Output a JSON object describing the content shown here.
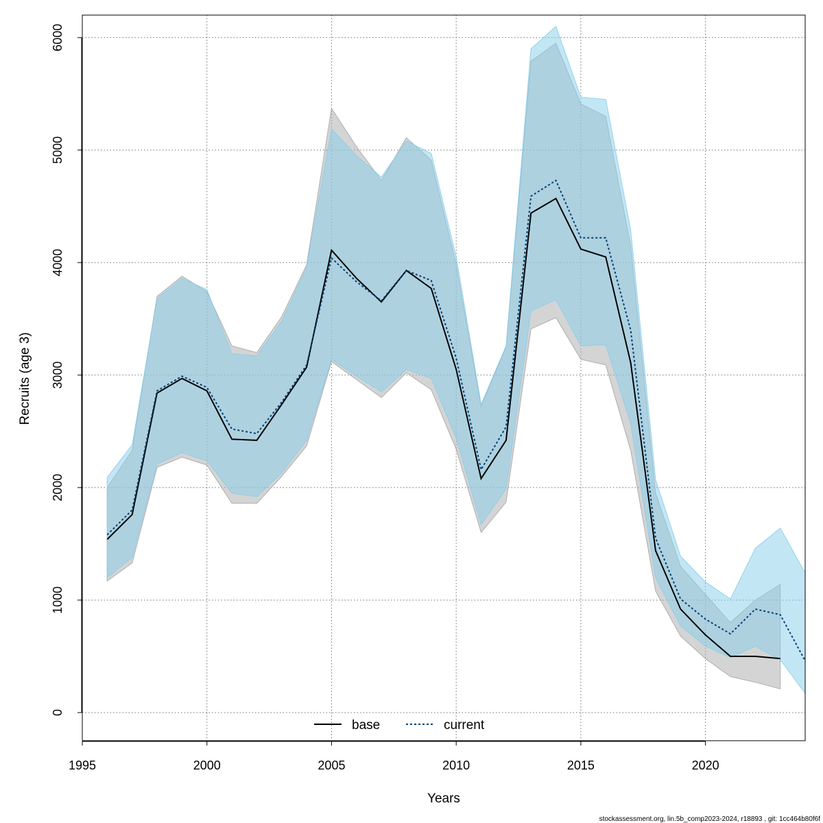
{
  "chart_data": {
    "type": "area",
    "xlabel": "Years",
    "ylabel": "Recruits (age 3)",
    "xlim": [
      1995,
      2024
    ],
    "ylim": [
      -250,
      6200
    ],
    "xticks": [
      1995,
      2000,
      2005,
      2010,
      2015,
      2020
    ],
    "yticks": [
      0,
      1000,
      2000,
      3000,
      4000,
      5000,
      6000
    ],
    "grid": true,
    "legend_position": "bottom-center",
    "series": [
      {
        "name": "base",
        "line_color": "#000000",
        "line_style": "solid",
        "band_color": "#a9a9a9",
        "x": [
          1996,
          1997,
          1998,
          1999,
          2000,
          2001,
          2002,
          2003,
          2004,
          2005,
          2006,
          2007,
          2008,
          2009,
          2010,
          2011,
          2012,
          2013,
          2014,
          2015,
          2016,
          2017,
          2018,
          2019,
          2020,
          2021,
          2022,
          2023
        ],
        "values": [
          1540,
          1760,
          2840,
          2970,
          2860,
          2430,
          2420,
          2740,
          3070,
          4110,
          3860,
          3650,
          3930,
          3770,
          3050,
          2080,
          2420,
          4440,
          4570,
          4120,
          4050,
          3110,
          1440,
          920,
          690,
          500,
          500,
          480
        ],
        "lower": [
          1170,
          1330,
          2180,
          2270,
          2200,
          1860,
          1860,
          2100,
          2370,
          3120,
          2960,
          2800,
          3020,
          2870,
          2340,
          1600,
          1870,
          3410,
          3510,
          3140,
          3090,
          2330,
          1080,
          680,
          480,
          320,
          270,
          210
        ],
        "upper": [
          2000,
          2330,
          3700,
          3880,
          3740,
          3260,
          3200,
          3520,
          3980,
          5370,
          5030,
          4730,
          5110,
          4910,
          3980,
          2720,
          3250,
          5790,
          5950,
          5410,
          5300,
          4150,
          1950,
          1300,
          1050,
          800,
          1000,
          1140
        ]
      },
      {
        "name": "current",
        "line_color": "#003f73",
        "line_style": "dotted",
        "band_color": "#87ceeb",
        "x": [
          1996,
          1997,
          1998,
          1999,
          2000,
          2001,
          2002,
          2003,
          2004,
          2005,
          2006,
          2007,
          2008,
          2009,
          2010,
          2011,
          2012,
          2013,
          2014,
          2015,
          2016,
          2017,
          2018,
          2019,
          2020,
          2021,
          2022,
          2023,
          2024
        ],
        "values": [
          1580,
          1800,
          2860,
          2990,
          2890,
          2520,
          2480,
          2760,
          3090,
          4040,
          3830,
          3660,
          3930,
          3840,
          3150,
          2160,
          2540,
          4590,
          4730,
          4220,
          4220,
          3400,
          1550,
          1010,
          830,
          700,
          920,
          870,
          460
        ],
        "lower": [
          1200,
          1380,
          2210,
          2310,
          2240,
          1950,
          1920,
          2130,
          2420,
          3140,
          2990,
          2850,
          3050,
          2970,
          2440,
          1670,
          1990,
          3570,
          3670,
          3260,
          3270,
          2570,
          1200,
          770,
          590,
          490,
          590,
          470,
          170
        ],
        "upper": [
          2090,
          2380,
          3680,
          3860,
          3760,
          3190,
          3170,
          3480,
          3960,
          5190,
          4950,
          4760,
          5080,
          4970,
          4050,
          2740,
          3260,
          5900,
          6100,
          5470,
          5450,
          4290,
          2070,
          1390,
          1160,
          1010,
          1460,
          1640,
          1240
        ]
      }
    ],
    "footer": "stockassessment.org, lin.5b_comp2023-2024, r18893 , git: 1cc464b80f6f"
  }
}
